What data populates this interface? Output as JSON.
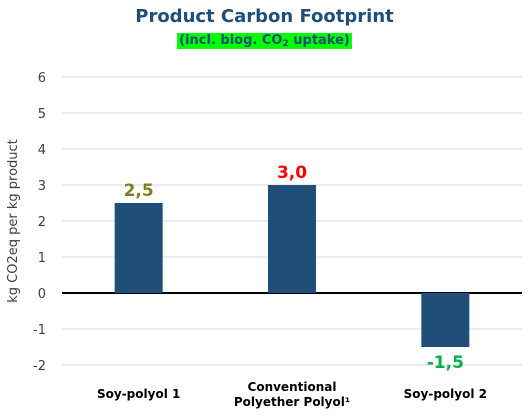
{
  "chart_data": {
    "type": "bar",
    "title": "Product Carbon Footprint",
    "subtitle_prefix": "(incl. biog. CO",
    "subtitle_sub": "2",
    "subtitle_suffix": " uptake)",
    "ylabel": "kg CO2eq per kg product",
    "xlabel": "",
    "ylim": [
      -2,
      6
    ],
    "yticks": [
      -2,
      -1,
      0,
      1,
      2,
      3,
      4,
      5,
      6
    ],
    "grid": true,
    "categories": [
      "Soy-polyol 1",
      "Conventional Polyether Polyol¹",
      "Soy-polyol 2"
    ],
    "category_lines": [
      [
        "Soy-polyol 1"
      ],
      [
        "Conventional",
        "Polyether Polyol¹"
      ],
      [
        "Soy-polyol 2"
      ]
    ],
    "values": [
      2.5,
      3.0,
      -1.5
    ],
    "data_labels": [
      "2,5",
      "3,0",
      "-1,5"
    ],
    "label_colors": [
      "#7f7f1f",
      "#ff0000",
      "#00b050"
    ],
    "bar_color": "#1f4e79"
  }
}
